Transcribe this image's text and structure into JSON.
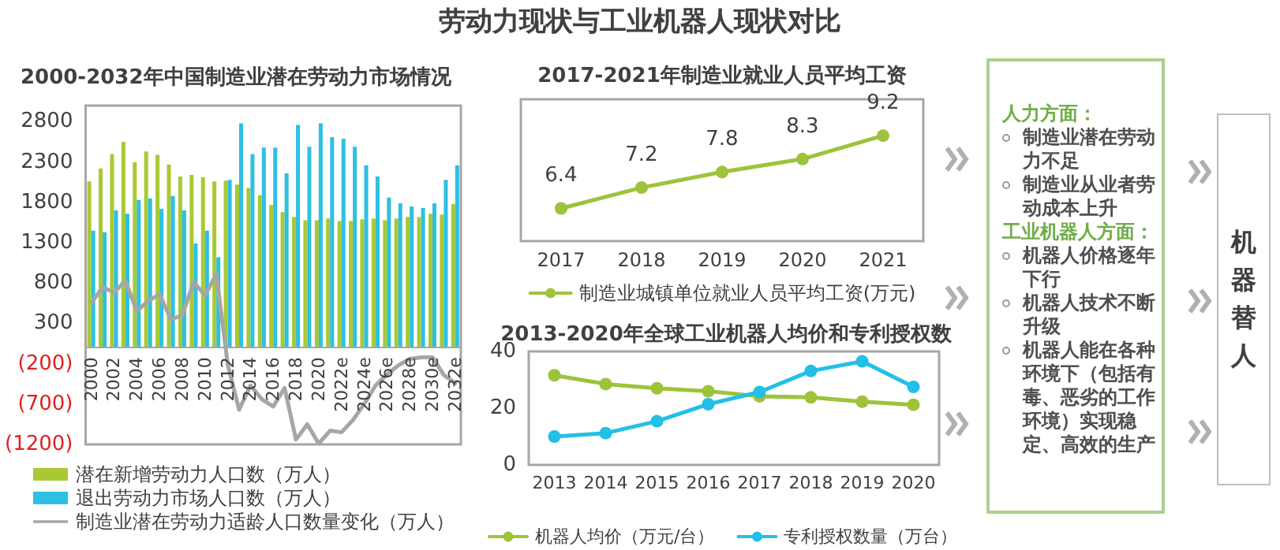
{
  "chart_data": [
    {
      "type": "bar",
      "title": "2000-2032年中国制造业潜在劳动力市场情况",
      "categories": [
        "2000",
        null,
        "2002",
        null,
        "2004",
        null,
        "2006",
        null,
        "2008",
        null,
        "2010",
        null,
        "2012",
        null,
        "2014",
        null,
        "2016",
        null,
        "2018",
        null,
        "2020",
        null,
        "2022e",
        null,
        "2024e",
        null,
        "2026e",
        null,
        "2028e",
        null,
        "2030e",
        null,
        "2032e"
      ],
      "series": [
        {
          "name": "潜在新增劳动力人口数（万人）",
          "type": "bar",
          "color": "#a9c934",
          "values": [
            2060,
            2220,
            2400,
            2550,
            2300,
            2430,
            2390,
            2270,
            2120,
            2140,
            2110,
            2060,
            2070,
            2020,
            1980,
            1890,
            1770,
            1680,
            1620,
            1580,
            1580,
            1600,
            1570,
            1570,
            1590,
            1600,
            1580,
            1600,
            1620,
            1620,
            1660,
            1650,
            1780
          ]
        },
        {
          "name": "退出劳动力市场人口数（万人）",
          "type": "bar",
          "color": "#2ec0e3",
          "values": [
            1450,
            1430,
            1700,
            1660,
            1830,
            1850,
            1720,
            1880,
            1700,
            1290,
            1450,
            1120,
            2080,
            2780,
            2400,
            2480,
            2480,
            2160,
            2760,
            2490,
            2780,
            2610,
            2590,
            2490,
            2260,
            2120,
            1860,
            1790,
            1750,
            1730,
            1790,
            2080,
            2260
          ]
        },
        {
          "name": "制造业潜在劳动力适龄人口数量变化（万人）",
          "type": "line",
          "color": "#a6a6a6",
          "values": [
            550,
            750,
            680,
            830,
            450,
            580,
            660,
            350,
            400,
            810,
            650,
            910,
            -210,
            -770,
            -470,
            -640,
            -730,
            -500,
            -1140,
            -950,
            -1190,
            -1030,
            -1050,
            -900,
            -700,
            -470,
            -330,
            -220,
            -140,
            -120,
            -120,
            -340,
            -440
          ]
        }
      ],
      "ylim": [
        -1200,
        3000
      ],
      "yticks": [
        {
          "value": -1200,
          "label": "(1200)"
        },
        {
          "value": -700,
          "label": "(700)"
        },
        {
          "value": -200,
          "label": "(200)"
        },
        300,
        800,
        1300,
        1800,
        2300,
        2800
      ],
      "marker": "none",
      "legend": "bottom"
    },
    {
      "type": "line",
      "title": "2017-2021年制造业就业人员平均工资",
      "categories": [
        "2017",
        "2018",
        "2019",
        "2020",
        "2021"
      ],
      "series": [
        {
          "name": "制造业城镇单位就业人员平均工资(万元)",
          "color": "#9dc33b",
          "values": [
            6.4,
            7.2,
            7.8,
            8.3,
            9.2
          ]
        }
      ],
      "data_labels": true,
      "marker": "circle",
      "legend": "bottom"
    },
    {
      "type": "line",
      "title": "2013-2020年全球工业机器人均价和专利授权数",
      "categories": [
        "2013",
        "2014",
        "2015",
        "2016",
        "2017",
        "2018",
        "2019",
        "2020"
      ],
      "series": [
        {
          "name": "机器人均价（万元/台）",
          "color": "#9dc33b",
          "values": [
            31.6,
            28.5,
            27,
            26,
            24.2,
            23.8,
            22.3,
            21.2
          ]
        },
        {
          "name": "专利授权数量（万台）",
          "color": "#22bfe9",
          "values": [
            10,
            11.2,
            15.4,
            21.4,
            25.7,
            33.1,
            36.5,
            27.5
          ]
        }
      ],
      "ylim": [
        0,
        40
      ],
      "yticks": [
        0,
        20,
        40
      ],
      "marker": "circle",
      "legend": "bottom"
    },
    {
      "type": "other",
      "title": "劳动力现状与工业机器人现状对比",
      "annotations": [
        "人力方面：",
        "制造业潜在劳动力不足",
        "制造业从业者劳动成本上升",
        "工业机器人方面：",
        "机器人价格逐年下行",
        "机器人技术不断升级",
        "机器人能在各种环境下（包括有毒、恶劣的工作环境）实现稳定、高效的生产",
        "机器替人"
      ]
    }
  ]
}
